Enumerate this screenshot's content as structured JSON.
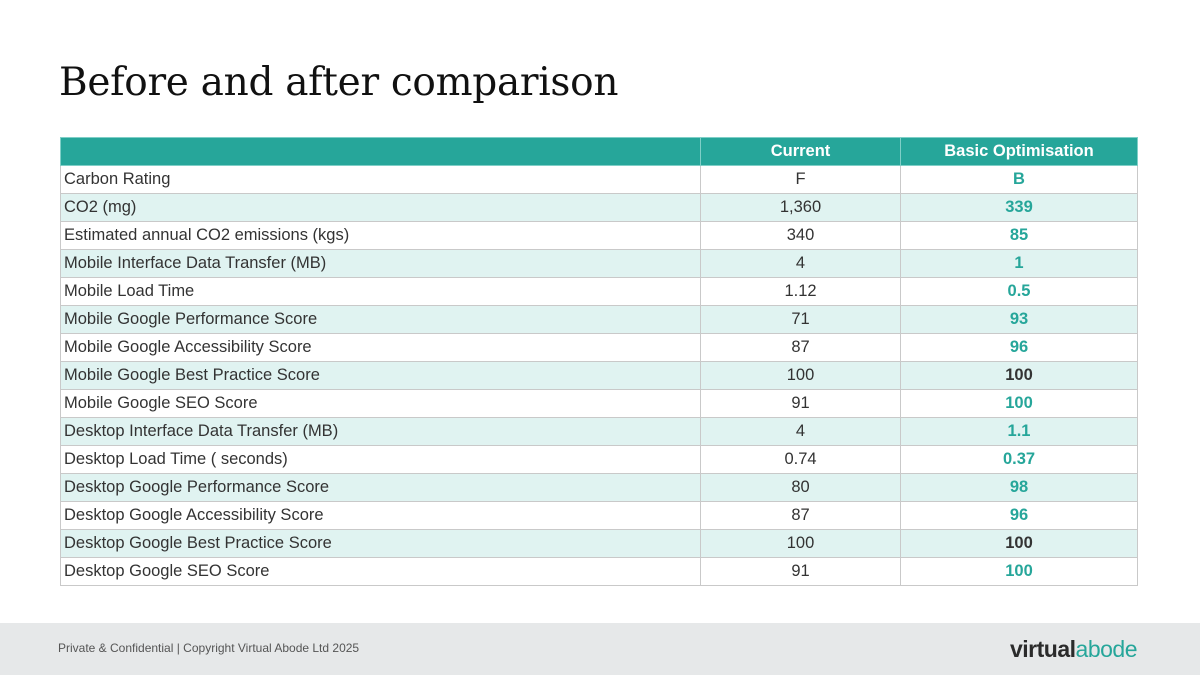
{
  "page": {
    "title": "Before and after comparison"
  },
  "table": {
    "headers": {
      "metric": "",
      "current": "Current",
      "optimised": "Basic Optimisation"
    },
    "rows": [
      {
        "metric": "Carbon Rating",
        "current": "F",
        "optimised": "B",
        "status": "improved"
      },
      {
        "metric": "CO2 (mg)",
        "current": "1,360",
        "optimised": "339",
        "status": "improved"
      },
      {
        "metric": "Estimated annual CO2 emissions (kgs)",
        "current": "340",
        "optimised": "85",
        "status": "improved"
      },
      {
        "metric": "Mobile Interface Data Transfer (MB)",
        "current": "4",
        "optimised": "1",
        "status": "improved"
      },
      {
        "metric": "Mobile Load Time",
        "current": "1.12",
        "optimised": "0.5",
        "status": "improved"
      },
      {
        "metric": "Mobile Google Performance Score",
        "current": "71",
        "optimised": "93",
        "status": "improved"
      },
      {
        "metric": "Mobile Google Accessibility Score",
        "current": "87",
        "optimised": "96",
        "status": "improved"
      },
      {
        "metric": "Mobile Google Best Practice Score",
        "current": "100",
        "optimised": "100",
        "status": "same"
      },
      {
        "metric": "Mobile Google SEO Score",
        "current": "91",
        "optimised": "100",
        "status": "improved"
      },
      {
        "metric": "Desktop Interface Data Transfer (MB)",
        "current": "4",
        "optimised": "1.1",
        "status": "improved"
      },
      {
        "metric": "Desktop Load Time ( seconds)",
        "current": "0.74",
        "optimised": "0.37",
        "status": "improved"
      },
      {
        "metric": "Desktop Google Performance Score",
        "current": "80",
        "optimised": "98",
        "status": "improved"
      },
      {
        "metric": "Desktop Google Accessibility Score",
        "current": "87",
        "optimised": "96",
        "status": "improved"
      },
      {
        "metric": "Desktop Google Best Practice Score",
        "current": "100",
        "optimised": "100",
        "status": "same"
      },
      {
        "metric": "Desktop Google SEO Score",
        "current": "91",
        "optimised": "100",
        "status": "improved"
      }
    ]
  },
  "footer": {
    "text": "Private & Confidential | Copyright Virtual Abode Ltd  2025",
    "logo_part1": "virtual",
    "logo_part2": "abode"
  },
  "colors": {
    "accent": "#26a69a",
    "row_alt": "#e0f3f1",
    "footer_bg": "#e6e8e9"
  }
}
